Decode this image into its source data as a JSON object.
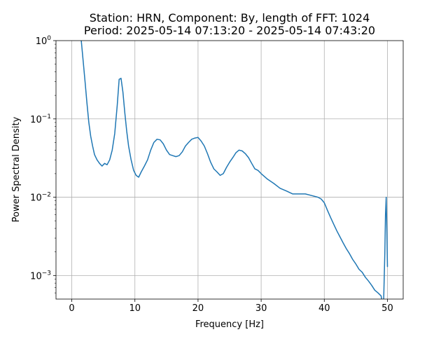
{
  "chart_data": {
    "type": "line",
    "title_line1": "Station: HRN, Component: By, length of FFT: 1024",
    "title_line2": "Period: 2025-05-14 07:13:20 - 2025-05-14 07:43:20",
    "xlabel": "Frequency [Hz]",
    "ylabel": "Power Spectral Density",
    "xlim": [
      -2.5,
      52.5
    ],
    "ylim": [
      0.0005,
      1
    ],
    "yscale": "log",
    "grid": true,
    "x_ticks": [
      0,
      10,
      20,
      30,
      40,
      50
    ],
    "x_tick_labels": [
      "0",
      "10",
      "20",
      "30",
      "40",
      "50"
    ],
    "y_ticks": [
      0.001,
      0.01,
      0.1,
      1
    ],
    "y_tick_labels": [
      {
        "base": "10",
        "exp": "−3"
      },
      {
        "base": "10",
        "exp": "−2"
      },
      {
        "base": "10",
        "exp": "−1"
      },
      {
        "base": "10",
        "exp": "0"
      }
    ],
    "line_color": "#1f77b4",
    "series": [
      {
        "x": [
          1.5,
          1.8,
          2.1,
          2.4,
          2.7,
          3.0,
          3.3,
          3.6,
          4.0,
          4.4,
          4.8,
          5.2,
          5.6,
          6.0,
          6.4,
          6.8,
          7.2,
          7.5,
          7.8,
          8.1,
          8.4,
          8.7,
          9.0,
          9.4,
          9.8,
          10.2,
          10.6,
          11.0,
          11.5,
          12.0,
          12.5,
          13.0,
          13.5,
          14.0,
          14.5,
          15.0,
          15.5,
          16.0,
          16.5,
          17.0,
          17.5,
          18.0,
          18.5,
          19.0,
          19.5,
          20.0,
          20.5,
          21.0,
          21.5,
          22.0,
          22.5,
          23.0,
          23.5,
          24.0,
          24.5,
          25.0,
          25.5,
          26.0,
          26.5,
          27.0,
          27.5,
          28.0,
          28.5,
          29.0,
          29.5,
          30.0,
          31.0,
          32.0,
          33.0,
          34.0,
          35.0,
          36.0,
          37.0,
          38.0,
          39.0,
          39.5,
          40.0,
          40.5,
          41.0,
          41.5,
          42.0,
          42.5,
          43.0,
          43.5,
          44.0,
          44.5,
          45.0,
          45.5,
          46.0,
          46.5,
          47.0,
          47.5,
          48.0,
          48.5,
          49.0,
          49.2,
          49.4,
          49.6,
          49.7,
          49.8,
          49.9,
          50.0
        ],
        "y": [
          1.0,
          0.55,
          0.3,
          0.16,
          0.09,
          0.06,
          0.045,
          0.035,
          0.03,
          0.027,
          0.025,
          0.027,
          0.026,
          0.03,
          0.04,
          0.065,
          0.15,
          0.32,
          0.33,
          0.22,
          0.12,
          0.07,
          0.045,
          0.03,
          0.022,
          0.019,
          0.018,
          0.021,
          0.025,
          0.03,
          0.04,
          0.05,
          0.055,
          0.054,
          0.048,
          0.04,
          0.035,
          0.034,
          0.033,
          0.034,
          0.038,
          0.045,
          0.05,
          0.055,
          0.057,
          0.058,
          0.052,
          0.045,
          0.036,
          0.028,
          0.023,
          0.021,
          0.019,
          0.02,
          0.024,
          0.028,
          0.032,
          0.037,
          0.04,
          0.039,
          0.036,
          0.032,
          0.027,
          0.023,
          0.022,
          0.02,
          0.017,
          0.015,
          0.013,
          0.012,
          0.011,
          0.011,
          0.011,
          0.0105,
          0.01,
          0.0095,
          0.0085,
          0.0068,
          0.0055,
          0.0045,
          0.0037,
          0.0031,
          0.0026,
          0.0022,
          0.0019,
          0.0016,
          0.0014,
          0.0012,
          0.0011,
          0.00095,
          0.00085,
          0.00075,
          0.00065,
          0.0006,
          0.00055,
          0.00045,
          0.00045,
          0.002,
          0.006,
          0.01,
          0.004,
          0.0013
        ]
      }
    ]
  }
}
